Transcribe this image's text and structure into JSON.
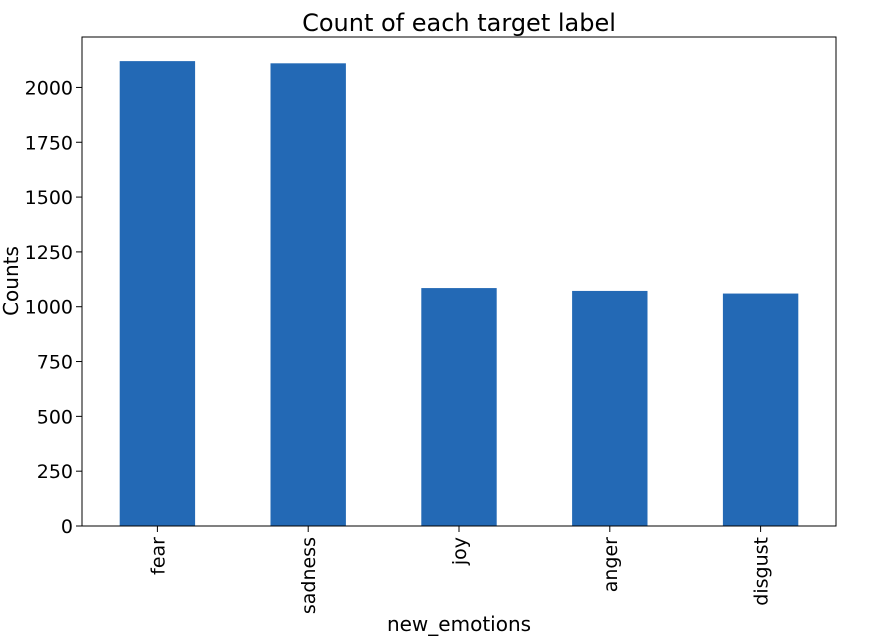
{
  "chart_data": {
    "type": "bar",
    "title": "Count of each target label",
    "xlabel": "new_emotions",
    "ylabel": "Counts",
    "categories": [
      "fear",
      "sadness",
      "joy",
      "anger",
      "disgust"
    ],
    "values": [
      2120,
      2110,
      1085,
      1072,
      1060
    ],
    "ylim": [
      0,
      2230
    ],
    "yticks": [
      0,
      250,
      500,
      750,
      1000,
      1250,
      1500,
      1750,
      2000
    ],
    "bar_color": "#2369b5",
    "grid": false,
    "legend": "none"
  }
}
